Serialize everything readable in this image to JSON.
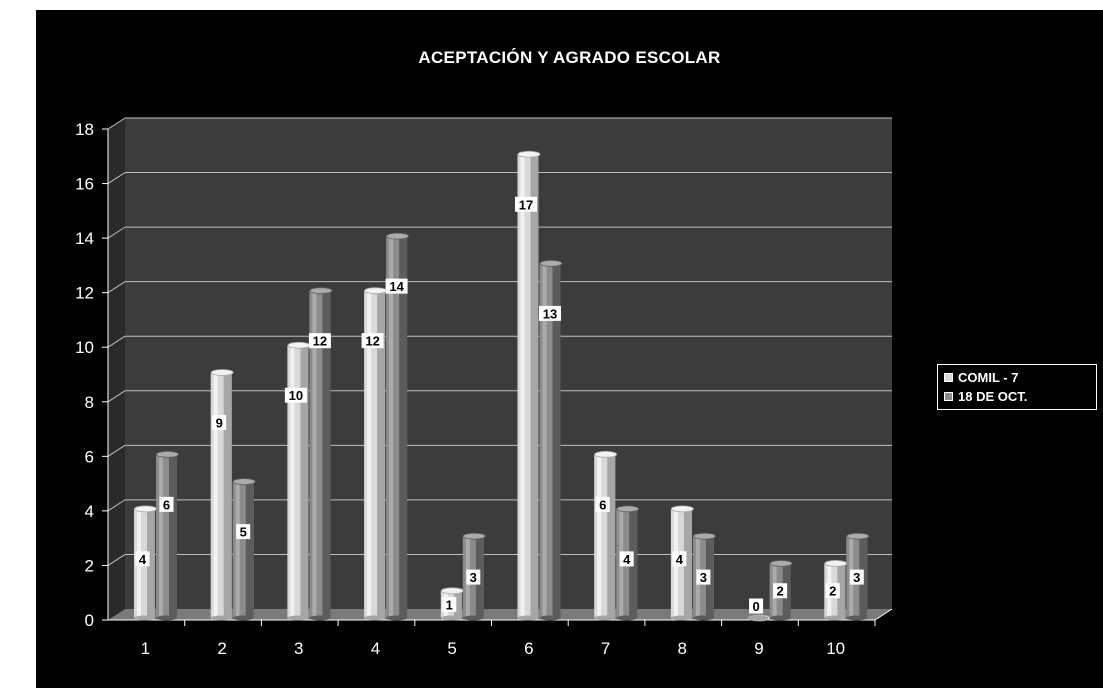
{
  "chart_data": {
    "type": "bar",
    "title": "ACEPTACIÓN Y AGRADO ESCOLAR",
    "categories": [
      "1",
      "2",
      "3",
      "4",
      "5",
      "6",
      "7",
      "8",
      "9",
      "10"
    ],
    "series": [
      {
        "name": "COMIL - 7",
        "values": [
          4,
          9,
          10,
          12,
          1,
          17,
          6,
          4,
          0,
          2
        ],
        "color": "#d9d9d9"
      },
      {
        "name": "18 DE OCT.",
        "values": [
          6,
          5,
          12,
          14,
          3,
          13,
          4,
          3,
          2,
          3
        ],
        "color": "#8c8c8c"
      }
    ],
    "yticks": [
      "0",
      "2",
      "4",
      "6",
      "8",
      "10",
      "12",
      "14",
      "16",
      "18"
    ],
    "ylim": [
      0,
      18
    ],
    "grid": true,
    "legend_position": "right"
  },
  "colors": {
    "background": "#000000",
    "wall": "#3c3c3c",
    "floor": "#7a7a7a",
    "text": "#ffffff"
  }
}
